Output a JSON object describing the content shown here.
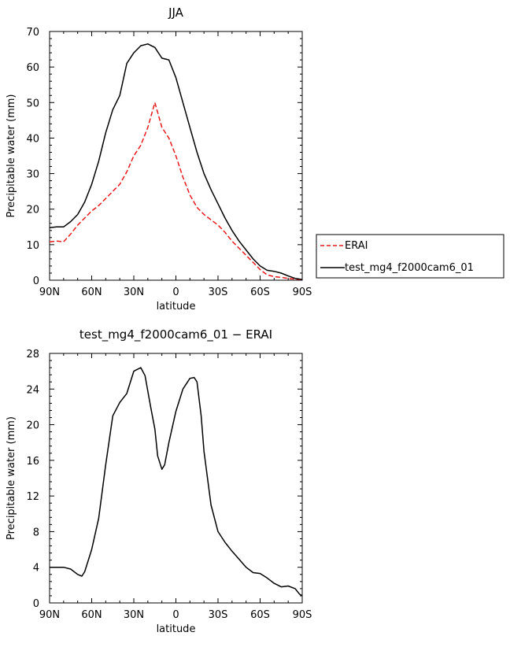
{
  "chart_data": [
    {
      "type": "line",
      "title": "JJA",
      "xlabel": "latitude",
      "ylabel": "Precipitable water (mm)",
      "xlim": [
        90,
        -90
      ],
      "ylim": [
        0,
        70
      ],
      "x_ticks": [
        90,
        60,
        30,
        0,
        -30,
        -60,
        -90
      ],
      "x_tick_labels": [
        "90N",
        "60N",
        "30N",
        "0",
        "30S",
        "60S",
        "90S"
      ],
      "y_ticks": [
        0,
        10,
        20,
        30,
        40,
        50,
        60,
        70
      ],
      "y_tick_labels": [
        "0",
        "10",
        "20",
        "30",
        "40",
        "50",
        "60",
        "70"
      ],
      "grid": false,
      "legend_placement": "right",
      "series": [
        {
          "name": "ERAI",
          "color": "#e8191a",
          "dash": "dashed",
          "x": [
            90,
            85,
            80,
            75,
            70,
            65,
            60,
            55,
            50,
            45,
            40,
            35,
            30,
            25,
            20,
            15,
            10,
            5,
            0,
            -5,
            -10,
            -15,
            -20,
            -25,
            -30,
            -35,
            -40,
            -45,
            -50,
            -55,
            -60,
            -65,
            -70,
            -75,
            -80,
            -85,
            -90
          ],
          "y": [
            10.8,
            11.0,
            10.8,
            13.0,
            15.5,
            17.5,
            19.5,
            21.0,
            23.0,
            25.0,
            27.0,
            30.5,
            35.0,
            38.0,
            43.0,
            50.0,
            43.0,
            40.0,
            35.0,
            29.0,
            24.0,
            20.5,
            18.5,
            17.0,
            15.5,
            13.5,
            11.0,
            9.0,
            7.0,
            5.0,
            3.0,
            1.5,
            1.0,
            0.8,
            0.5,
            0.3,
            0.1
          ]
        },
        {
          "name": "test_mg4_f2000cam6_01",
          "color": "#000000",
          "dash": "solid",
          "x": [
            90,
            85,
            80,
            75,
            70,
            65,
            60,
            55,
            50,
            45,
            40,
            35,
            30,
            25,
            20,
            15,
            10,
            5,
            0,
            -5,
            -10,
            -15,
            -20,
            -25,
            -30,
            -35,
            -40,
            -45,
            -50,
            -55,
            -60,
            -65,
            -70,
            -75,
            -80,
            -85,
            -90
          ],
          "y": [
            14.8,
            15.0,
            15.0,
            16.5,
            18.5,
            22.0,
            27.0,
            33.5,
            41.5,
            48.0,
            52.0,
            61.0,
            64.0,
            66.0,
            66.5,
            65.5,
            62.5,
            62.0,
            57.0,
            50.0,
            43.0,
            36.0,
            30.0,
            25.5,
            21.5,
            17.5,
            14.0,
            11.0,
            8.5,
            6.0,
            4.0,
            2.8,
            2.5,
            2.0,
            1.2,
            0.5,
            0.2
          ]
        }
      ]
    },
    {
      "type": "line",
      "title": "test_mg4_f2000cam6_01 − ERAI",
      "xlabel": "latitude",
      "ylabel": "Precipitable water (mm)",
      "xlim": [
        90,
        -90
      ],
      "ylim": [
        0,
        28
      ],
      "x_ticks": [
        90,
        60,
        30,
        0,
        -30,
        -60,
        -90
      ],
      "x_tick_labels": [
        "90N",
        "60N",
        "30N",
        "0",
        "30S",
        "60S",
        "90S"
      ],
      "y_ticks": [
        0,
        4,
        8,
        12,
        16,
        20,
        24,
        28
      ],
      "y_tick_labels": [
        "0",
        "4",
        "8",
        "12",
        "16",
        "20",
        "24",
        "28"
      ],
      "grid": false,
      "series": [
        {
          "color": "#000000",
          "dash": "solid",
          "x": [
            90,
            85,
            80,
            75,
            70,
            67,
            65,
            60,
            55,
            50,
            45,
            40,
            35,
            30,
            25,
            22,
            18,
            15,
            13,
            10,
            8,
            5,
            0,
            -5,
            -10,
            -13,
            -15,
            -18,
            -20,
            -25,
            -30,
            -35,
            -40,
            -45,
            -50,
            -55,
            -60,
            -65,
            -70,
            -75,
            -80,
            -85,
            -88,
            -90
          ],
          "y": [
            4.0,
            4.0,
            4.0,
            3.8,
            3.2,
            3.0,
            3.5,
            6.0,
            9.5,
            15.5,
            21.0,
            22.5,
            23.5,
            26.0,
            26.4,
            25.5,
            22.0,
            19.5,
            16.5,
            15.0,
            15.5,
            18.0,
            21.5,
            24.0,
            25.2,
            25.3,
            24.8,
            21.0,
            17.0,
            11.0,
            8.0,
            6.8,
            5.8,
            4.9,
            4.0,
            3.4,
            3.3,
            2.8,
            2.2,
            1.8,
            1.9,
            1.6,
            1.0,
            0.8
          ]
        }
      ]
    }
  ]
}
